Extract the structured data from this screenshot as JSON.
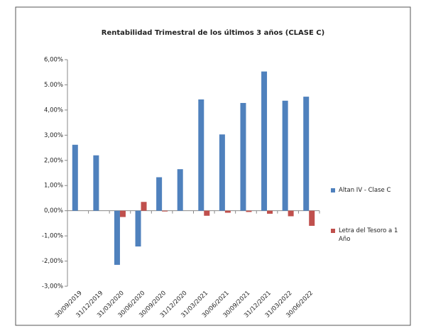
{
  "chart_data": {
    "type": "bar",
    "title": "Rentabilidad Trimestral de los últimos 3 años (CLASE C)",
    "categories": [
      "30/09/2019",
      "31/12/2019",
      "31/03/2020",
      "30/06/2020",
      "30/09/2020",
      "31/12/2020",
      "31/03/2021",
      "30/06/2021",
      "30/09/2021",
      "31/12/2021",
      "31/03/2022",
      "30/06/2022"
    ],
    "series": [
      {
        "name": "Altan IV - Clase C",
        "color": "#4f81bd",
        "values": [
          2.62,
          2.2,
          -2.15,
          -1.42,
          1.33,
          1.65,
          4.42,
          3.03,
          4.28,
          5.53,
          4.37,
          4.53
        ]
      },
      {
        "name": "Letra del Tesoro a 1 Año",
        "color": "#c0504d",
        "values": [
          0,
          0,
          -0.25,
          0.35,
          -0.03,
          0,
          -0.2,
          -0.08,
          -0.05,
          -0.12,
          -0.22,
          -0.6
        ]
      }
    ],
    "ylim": [
      -3,
      6
    ],
    "yticks": [
      {
        "value": -3,
        "label": "-3,00%"
      },
      {
        "value": -2,
        "label": "-2,00%"
      },
      {
        "value": -1,
        "label": "-1,00%"
      },
      {
        "value": 0,
        "label": "0,00%"
      },
      {
        "value": 1,
        "label": "1,00%"
      },
      {
        "value": 2,
        "label": "2,00%"
      },
      {
        "value": 3,
        "label": "3,00%"
      },
      {
        "value": 4,
        "label": "4,00%"
      },
      {
        "value": 5,
        "label": "5.00%"
      },
      {
        "value": 6,
        "label": "6,00%"
      }
    ],
    "legend": "right"
  }
}
